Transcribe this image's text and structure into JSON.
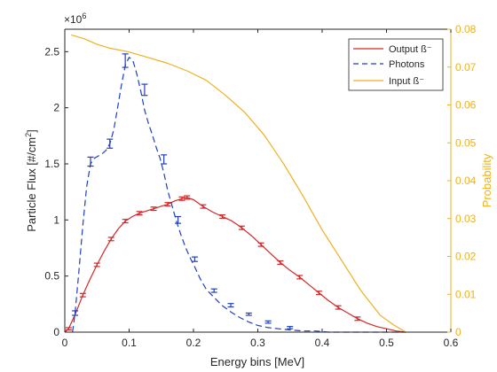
{
  "chart_data": {
    "type": "line",
    "xlabel": "Energy bins [MeV]",
    "ylabel_left": "Particle Flux [#/cm",
    "ylabel_left_sup": "2",
    "ylabel_left_close": "]",
    "ylabel_right": "Probability",
    "exponent_label": "×10",
    "exponent_power": "6",
    "xlim": [
      0,
      0.6
    ],
    "ylim_left": [
      0,
      2.7
    ],
    "ylim_right": [
      0,
      0.08
    ],
    "x_ticks": [
      "0",
      "0.1",
      "0.2",
      "0.3",
      "0.4",
      "0.5",
      "0.6"
    ],
    "y_left_ticks": [
      "0",
      "0.5",
      "1",
      "1.5",
      "2",
      "2.5"
    ],
    "y_right_ticks": [
      "0",
      "0.01",
      "0.02",
      "0.03",
      "0.04",
      "0.05",
      "0.06",
      "0.07",
      "0.08"
    ],
    "legend_position": "top-right",
    "grid": false,
    "colors": {
      "output": "#d62728",
      "photons": "#1f3fbf",
      "input": "#edb120",
      "axis": "#262626"
    },
    "series": [
      {
        "name": "Output ß⁻",
        "axis": "left",
        "style": "solid",
        "x": [
          0.0,
          0.006,
          0.017,
          0.028,
          0.039,
          0.05,
          0.061,
          0.072,
          0.083,
          0.094,
          0.105,
          0.116,
          0.127,
          0.138,
          0.149,
          0.16,
          0.171,
          0.182,
          0.19,
          0.2,
          0.215,
          0.23,
          0.245,
          0.26,
          0.275,
          0.29,
          0.305,
          0.32,
          0.335,
          0.35,
          0.365,
          0.38,
          0.395,
          0.41,
          0.425,
          0.44,
          0.455,
          0.47,
          0.485,
          0.5,
          0.515,
          0.53
        ],
        "y": [
          0.0,
          0.03,
          0.17,
          0.33,
          0.47,
          0.6,
          0.72,
          0.83,
          0.92,
          0.99,
          1.03,
          1.06,
          1.08,
          1.1,
          1.12,
          1.14,
          1.17,
          1.19,
          1.2,
          1.18,
          1.12,
          1.07,
          1.03,
          0.99,
          0.93,
          0.86,
          0.78,
          0.7,
          0.62,
          0.55,
          0.49,
          0.42,
          0.35,
          0.28,
          0.22,
          0.17,
          0.12,
          0.08,
          0.05,
          0.03,
          0.01,
          0.0
        ]
      },
      {
        "name": "Photons",
        "axis": "left",
        "style": "dashed",
        "x": [
          0.012,
          0.016,
          0.022,
          0.028,
          0.034,
          0.04,
          0.046,
          0.052,
          0.058,
          0.064,
          0.07,
          0.076,
          0.082,
          0.088,
          0.094,
          0.1,
          0.106,
          0.112,
          0.118,
          0.124,
          0.13,
          0.136,
          0.142,
          0.148,
          0.154,
          0.16,
          0.167,
          0.174,
          0.181,
          0.188,
          0.195,
          0.202,
          0.21,
          0.22,
          0.232,
          0.244,
          0.258,
          0.272,
          0.286,
          0.3,
          0.316,
          0.332,
          0.35,
          0.37,
          0.39,
          0.41,
          0.43,
          0.45,
          0.47,
          0.49,
          0.51,
          0.53
        ],
        "y": [
          0.0,
          0.17,
          0.55,
          0.95,
          1.3,
          1.5,
          1.55,
          1.57,
          1.59,
          1.62,
          1.68,
          1.8,
          2.0,
          2.2,
          2.38,
          2.45,
          2.42,
          2.3,
          2.15,
          1.98,
          1.86,
          1.76,
          1.65,
          1.55,
          1.42,
          1.26,
          1.12,
          0.98,
          0.86,
          0.75,
          0.66,
          0.58,
          0.48,
          0.38,
          0.31,
          0.24,
          0.18,
          0.13,
          0.09,
          0.06,
          0.04,
          0.03,
          0.02,
          0.01,
          0.01,
          0.0,
          0.0,
          0.0,
          0.0,
          0.0,
          0.0,
          0.0
        ]
      },
      {
        "name": "Input ß⁻",
        "axis": "right",
        "style": "solid",
        "x": [
          0.01,
          0.03,
          0.05,
          0.07,
          0.1,
          0.13,
          0.16,
          0.19,
          0.22,
          0.25,
          0.28,
          0.31,
          0.34,
          0.37,
          0.4,
          0.43,
          0.46,
          0.49,
          0.51,
          0.53
        ],
        "y": [
          0.0785,
          0.0775,
          0.076,
          0.075,
          0.074,
          0.0725,
          0.071,
          0.069,
          0.0665,
          0.0625,
          0.058,
          0.052,
          0.0445,
          0.036,
          0.027,
          0.019,
          0.011,
          0.0045,
          0.002,
          0.0
        ]
      }
    ],
    "error_points": {
      "output": {
        "x": [
          0.006,
          0.028,
          0.05,
          0.072,
          0.094,
          0.116,
          0.138,
          0.16,
          0.182,
          0.19,
          0.215,
          0.245,
          0.275,
          0.305,
          0.335,
          0.365,
          0.395,
          0.425,
          0.455
        ],
        "y": [
          0.03,
          0.33,
          0.6,
          0.83,
          0.99,
          1.06,
          1.1,
          1.14,
          1.19,
          1.2,
          1.12,
          1.03,
          0.93,
          0.78,
          0.62,
          0.49,
          0.35,
          0.22,
          0.12
        ],
        "err": [
          0.01,
          0.015,
          0.015,
          0.015,
          0.015,
          0.015,
          0.015,
          0.015,
          0.015,
          0.015,
          0.015,
          0.015,
          0.015,
          0.015,
          0.015,
          0.015,
          0.015,
          0.015,
          0.015
        ]
      },
      "photons": {
        "x": [
          0.016,
          0.04,
          0.07,
          0.094,
          0.124,
          0.154,
          0.176,
          0.202,
          0.232,
          0.258,
          0.286,
          0.316,
          0.35
        ],
        "y": [
          0.17,
          1.52,
          1.68,
          2.42,
          2.16,
          1.54,
          1.0,
          0.65,
          0.37,
          0.24,
          0.16,
          0.09,
          0.04
        ],
        "err": [
          0.02,
          0.04,
          0.04,
          0.06,
          0.05,
          0.04,
          0.03,
          0.02,
          0.015,
          0.015,
          0.01,
          0.01,
          0.01
        ]
      }
    }
  }
}
